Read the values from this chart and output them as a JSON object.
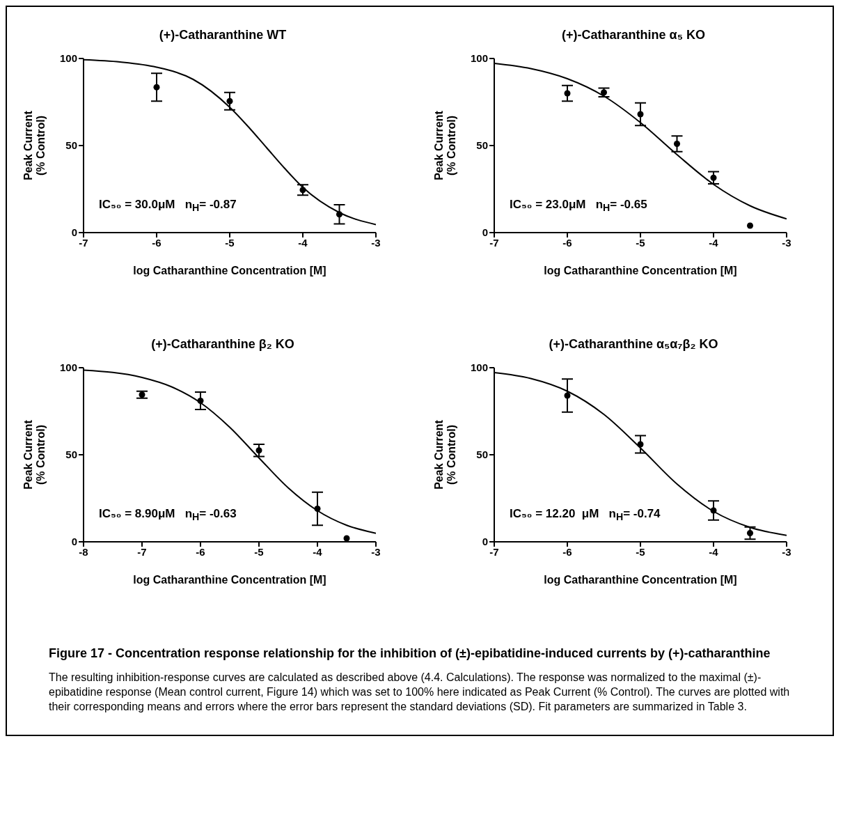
{
  "chart_data": [
    {
      "type": "scatter",
      "title": "(+)-Catharanthine WT",
      "xlabel": "log Catharanthine Concentration [M]",
      "ylabel": "Peak Current\n(% Control)",
      "xlim": [
        -7,
        -3
      ],
      "xticks": [
        -7,
        -6,
        -5,
        -4,
        -3
      ],
      "ylim": [
        0,
        100
      ],
      "yticks": [
        0,
        50,
        100
      ],
      "annotations": [
        "IC₅₀ = 30.0μM   n$_{H}$= -0.87"
      ],
      "series": [
        {
          "marker": "circle",
          "color": "#000000",
          "x": [
            -6,
            -5,
            -4,
            -3.5
          ],
          "values": [
            83.5,
            75.5,
            24.5,
            10.5
          ],
          "errors": [
            8,
            5,
            3,
            5.5
          ]
        },
        {
          "type": "line",
          "marker": "none",
          "color": "#000000",
          "x": [
            -7,
            -6.5,
            -6,
            -5.5,
            -5,
            -4.75,
            -4.5,
            -4.25,
            -4,
            -3.5,
            -3
          ],
          "values": [
            99.3,
            98,
            95,
            88,
            72,
            61,
            49,
            37,
            26,
            11.5,
            4.6
          ]
        }
      ]
    },
    {
      "type": "scatter",
      "title": "(+)-Catharanthine α₅ KO",
      "xlabel": "log Catharanthine Concentration [M]",
      "ylabel": "Peak Current\n(% Control)",
      "xlim": [
        -7,
        -3
      ],
      "xticks": [
        -7,
        -6,
        -5,
        -4,
        -3
      ],
      "ylim": [
        0,
        100
      ],
      "yticks": [
        0,
        50,
        100
      ],
      "annotations": [
        "IC₅₀ = 23.0μM   n$_{H}$= -0.65"
      ],
      "series": [
        {
          "marker": "circle",
          "color": "#000000",
          "x": [
            -6,
            -5.5,
            -5,
            -4.5,
            -4,
            -3.5
          ],
          "values": [
            80,
            80.5,
            68,
            51,
            31.5,
            4
          ],
          "errors": [
            4.5,
            2.5,
            6.5,
            4.5,
            3.5,
            null
          ]
        },
        {
          "type": "line",
          "marker": "none",
          "color": "#000000",
          "x": [
            -7,
            -6.5,
            -6,
            -5.5,
            -5,
            -4.5,
            -4,
            -3.5,
            -3
          ],
          "values": [
            97.2,
            94.2,
            88.4,
            78.4,
            63.2,
            44.8,
            27.7,
            15.4,
            7.9
          ]
        }
      ]
    },
    {
      "type": "scatter",
      "title": "(+)-Catharanthine β₂ KO",
      "xlabel": "log Catharanthine Concentration [M]",
      "ylabel": "Peak Current\n(% Control)",
      "xlim": [
        -8,
        -3
      ],
      "xticks": [
        -8,
        -7,
        -6,
        -5,
        -4,
        -3
      ],
      "ylim": [
        0,
        100
      ],
      "yticks": [
        0,
        50,
        100
      ],
      "annotations": [
        "IC₅₀ = 8.90μM   n$_{H}$= -0.63"
      ],
      "series": [
        {
          "marker": "circle",
          "color": "#000000",
          "x": [
            -7,
            -6,
            -5,
            -4,
            -3.5
          ],
          "values": [
            84.5,
            81,
            52.5,
            19,
            2
          ],
          "errors": [
            2,
            5,
            3.5,
            9.5,
            null
          ]
        },
        {
          "type": "line",
          "marker": "none",
          "color": "#000000",
          "x": [
            -8,
            -7,
            -6.5,
            -6,
            -5.5,
            -5,
            -4.5,
            -4,
            -3.5,
            -3
          ],
          "values": [
            98.6,
            94.4,
            89.1,
            79.9,
            65.8,
            48.2,
            31,
            17.9,
            9.5,
            4.9
          ]
        }
      ]
    },
    {
      "type": "scatter",
      "title": "(+)-Catharanthine  α₅α₇β₂ KO",
      "xlabel": "log Catharanthine Concentration [M]",
      "ylabel": "Peak Current\n(% Control)",
      "xlim": [
        -7,
        -3
      ],
      "xticks": [
        -7,
        -6,
        -5,
        -4,
        -3
      ],
      "ylim": [
        0,
        100
      ],
      "yticks": [
        0,
        50,
        100
      ],
      "annotations": [
        "IC₅₀ = 12.20  μM   n$_{H}$= -0.74",
        "Figure 17 - Concentration response relationship for the inhibition of (±)-epibatidine-induced currents by (+)-catharanthine",
        "The resulting inhibition-response curves are calculated as described above (4.4. Calculations). The response was normalized to the maximal (±)-epibatidine response (Mean control current, Figure 14) which was set to 100% here indicated as Peak Current (% Control). The curves are plotted with their corresponding means and errors where the error bars represent the standard deviations (SD). Fit parameters are summarized in Table 3."
      ],
      "series": [
        {
          "marker": "circle",
          "color": "#000000",
          "x": [
            -6,
            -5,
            -4,
            -3.5
          ],
          "values": [
            84,
            56,
            18,
            5
          ],
          "errors": [
            9.5,
            5,
            5.5,
            3.5
          ]
        },
        {
          "type": "line",
          "marker": "none",
          "color": "#000000",
          "x": [
            -7,
            -6.5,
            -6,
            -5.5,
            -5,
            -4.5,
            -4,
            -3.5,
            -3
          ],
          "values": [
            97.2,
            93.8,
            86.5,
            73.2,
            53.9,
            33.2,
            17.5,
            8.3,
            3.7
          ]
        }
      ]
    }
  ]
}
